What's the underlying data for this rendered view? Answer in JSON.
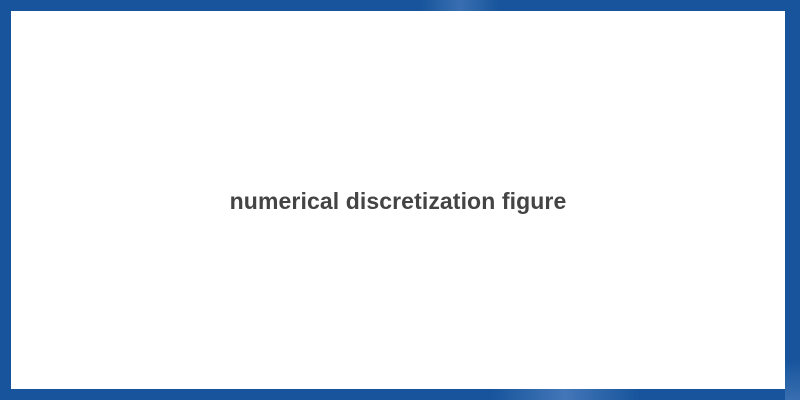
{
  "placeholder": {
    "label": "numerical discretization figure"
  },
  "colors": {
    "frame": "#17549b",
    "panel": "#ffffff",
    "text": "#444444"
  }
}
